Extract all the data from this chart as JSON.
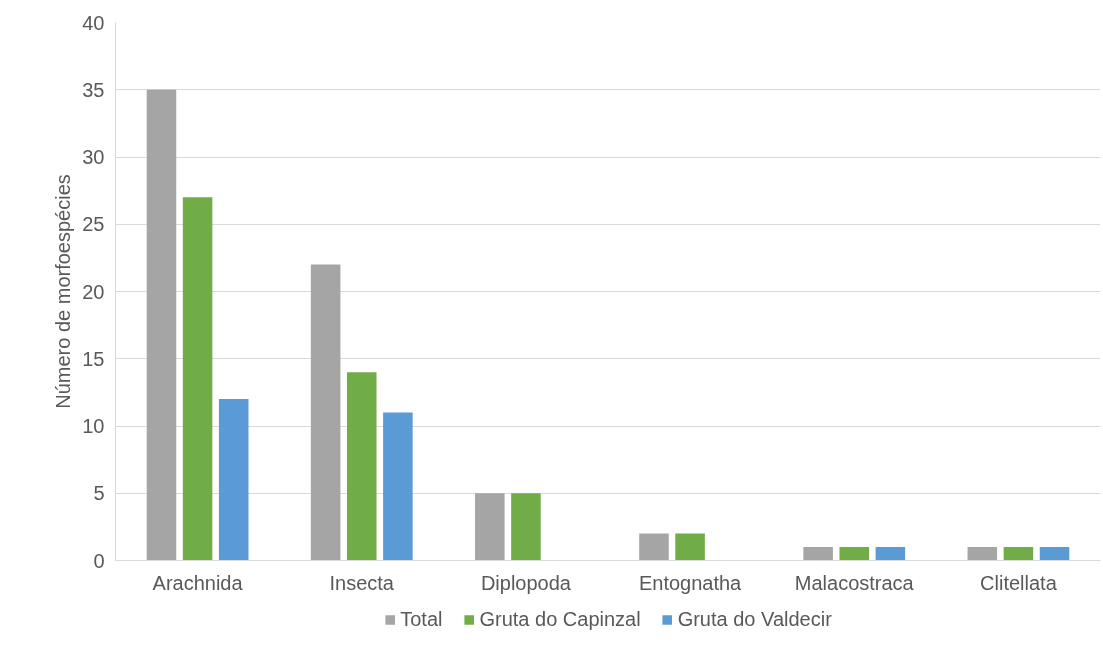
{
  "chart_data": {
    "type": "bar",
    "ylabel": "Número de morfoespécies",
    "categories": [
      "Arachnida",
      "Insecta",
      "Diplopoda",
      "Entognatha",
      "Malacostraca",
      "Clitellata"
    ],
    "series": [
      {
        "name": "Total",
        "color": "#a5a5a5",
        "values": [
          35,
          22,
          5,
          2,
          1,
          1
        ]
      },
      {
        "name": "Gruta do Capinzal",
        "color": "#70ad47",
        "values": [
          27,
          14,
          5,
          2,
          1,
          1
        ]
      },
      {
        "name": "Gruta do Valdecir",
        "color": "#5b9bd5",
        "values": [
          12,
          11,
          0,
          0,
          1,
          1
        ]
      }
    ],
    "ylim": [
      0,
      40
    ],
    "yticks": [
      0,
      5,
      10,
      15,
      20,
      25,
      30,
      35,
      40
    ],
    "grid": "y",
    "legend": "bottom"
  }
}
